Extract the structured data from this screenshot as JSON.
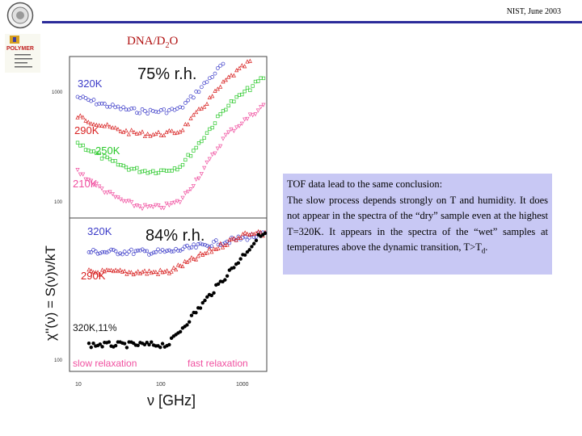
{
  "header": {
    "conference": "NIST, June 2003",
    "slide_title_main": "DNA/D",
    "slide_title_sub": "2",
    "slide_title_end": "O"
  },
  "logos": {
    "polymer_text": "POLYMER"
  },
  "figure": {
    "top_panel": {
      "title": "75% r.h.",
      "labels": [
        "320K",
        "290K",
        "250K",
        "210K"
      ],
      "ytick": [
        "1000",
        "100"
      ]
    },
    "bottom_panel": {
      "title": "84% r.h.",
      "labels": [
        "320K",
        "290K",
        "320K,11%"
      ],
      "ytick": "100",
      "slow_label": "slow relaxation",
      "fast_label": "fast relaxation"
    },
    "x_ticks": [
      "10",
      "100",
      "1000"
    ],
    "x_label": "ν [GHz]",
    "y_label": "χ''(ν) = S(ν)ν/kT"
  },
  "callout": {
    "line1": "TOF data lead to the same conclusion:",
    "line2": "The slow process depends strongly on T and humidity. It does not appear in the spectra of the “dry” sample even at the highest T=320K. It appears in the spectra of the “wet” samples at temperatures above the dynamic transition, T>T",
    "line2_sub": "d",
    "line2_end": "."
  },
  "colors": {
    "blue": "#3a3ac8",
    "red": "#d82020",
    "green": "#28c828",
    "pink": "#f050a0",
    "black": "#000000",
    "callout_bg": "#c8c8f4"
  }
}
